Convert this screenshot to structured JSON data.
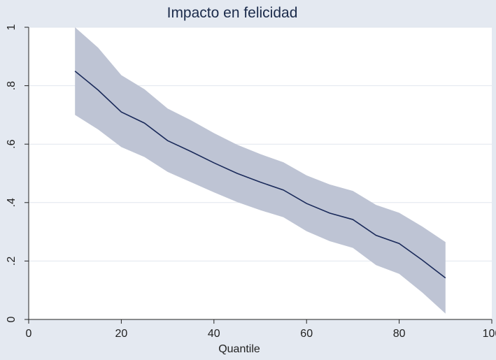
{
  "chart_data": {
    "type": "line",
    "title": "Impacto en felicidad",
    "xlabel": "Quantile",
    "ylabel": "",
    "xlim": [
      0,
      100
    ],
    "ylim": [
      0,
      1
    ],
    "x_ticks": [
      0,
      20,
      40,
      60,
      80,
      100
    ],
    "x_tick_labels": [
      "0",
      "20",
      "40",
      "60",
      "80",
      "100"
    ],
    "y_ticks": [
      0,
      0.2,
      0.4,
      0.6,
      0.8,
      1
    ],
    "y_tick_labels": [
      "0",
      ".2",
      ".4",
      ".6",
      ".8",
      "1"
    ],
    "grid": true,
    "legend": "none",
    "x": [
      10,
      15,
      20,
      25,
      30,
      35,
      40,
      45,
      50,
      55,
      60,
      65,
      70,
      75,
      80,
      85,
      90
    ],
    "series": [
      {
        "values": [
          0.85,
          0.785,
          0.71,
          0.672,
          0.612,
          0.575,
          0.536,
          0.5,
          0.47,
          0.443,
          0.397,
          0.364,
          0.342,
          0.288,
          0.26,
          0.203,
          0.142
        ],
        "lower": [
          0.7,
          0.65,
          0.59,
          0.556,
          0.505,
          0.47,
          0.435,
          0.402,
          0.374,
          0.35,
          0.302,
          0.268,
          0.245,
          0.186,
          0.156,
          0.092,
          0.02
        ],
        "upper": [
          1.0,
          0.93,
          0.836,
          0.788,
          0.722,
          0.682,
          0.638,
          0.598,
          0.566,
          0.538,
          0.493,
          0.462,
          0.44,
          0.392,
          0.365,
          0.318,
          0.265
        ]
      }
    ],
    "colors": {
      "background": "#e4e9f1",
      "plot_background": "#ffffff",
      "line": "#1a2a5a",
      "band": "#bec4d4",
      "grid": "#e1e6ee",
      "axis": "#222222"
    }
  }
}
